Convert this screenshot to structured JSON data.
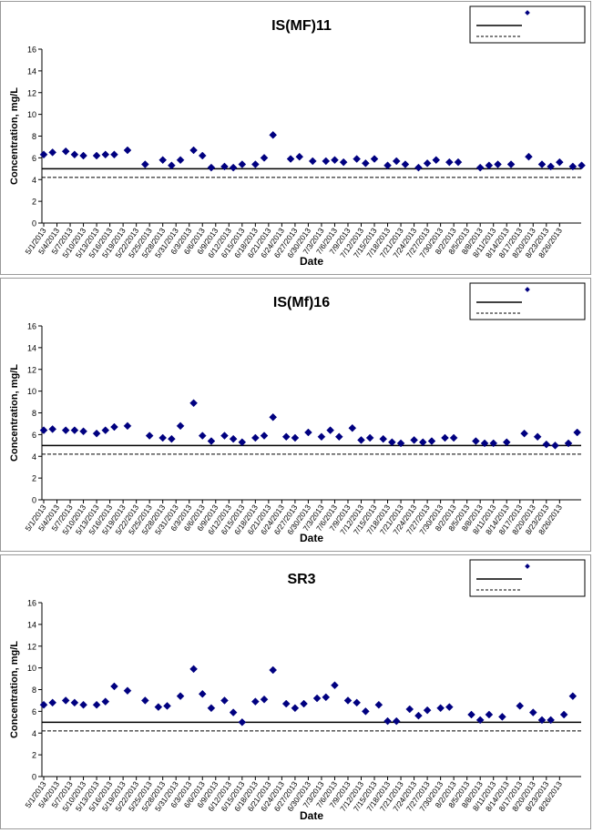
{
  "chart_data": [
    {
      "type": "scatter",
      "title": "IS(MF)11",
      "xlabel": "Date",
      "ylabel": "Concentration, mg/L",
      "ylim": [
        0,
        16
      ],
      "yticks": [
        0,
        2,
        4,
        6,
        8,
        10,
        12,
        14,
        16
      ],
      "xlim": [
        "2013-05-01",
        "2013-08-28"
      ],
      "xtick_labels": [
        "5/1/2013",
        "5/4/2013",
        "5/7/2013",
        "5/10/2013",
        "5/13/2013",
        "5/16/2013",
        "5/19/2013",
        "5/22/2013",
        "5/25/2013",
        "5/28/2013",
        "5/31/2013",
        "6/3/2013",
        "6/6/2013",
        "6/9/2013",
        "6/12/2013",
        "6/15/2013",
        "6/18/2013",
        "6/21/2013",
        "6/24/2013",
        "6/27/2013",
        "6/30/2013",
        "7/3/2013",
        "7/6/2013",
        "7/9/2013",
        "7/12/2013",
        "7/15/2013",
        "7/18/2013",
        "7/21/2013",
        "7/24/2013",
        "7/27/2013",
        "7/30/2013",
        "8/2/2013",
        "8/5/2013",
        "8/8/2013",
        "8/11/2013",
        "8/14/2013",
        "8/17/2013",
        "8/20/2013",
        "8/23/2013",
        "8/26/2013"
      ],
      "marker_color": "#000080",
      "grid": false,
      "legend": "top-right",
      "reference_lines": [
        {
          "style": "solid",
          "value": 5
        },
        {
          "style": "dashed",
          "value": 4.2
        }
      ],
      "points": [
        {
          "x": "5/1/2013",
          "y": 6.3
        },
        {
          "x": "5/3/2013",
          "y": 6.5
        },
        {
          "x": "5/6/2013",
          "y": 6.6
        },
        {
          "x": "5/8/2013",
          "y": 6.3
        },
        {
          "x": "5/10/2013",
          "y": 6.2
        },
        {
          "x": "5/13/2013",
          "y": 6.2
        },
        {
          "x": "5/15/2013",
          "y": 6.3
        },
        {
          "x": "5/17/2013",
          "y": 6.3
        },
        {
          "x": "5/20/2013",
          "y": 6.7
        },
        {
          "x": "5/24/2013",
          "y": 5.4
        },
        {
          "x": "5/28/2013",
          "y": 5.8
        },
        {
          "x": "5/30/2013",
          "y": 5.3
        },
        {
          "x": "6/1/2013",
          "y": 5.8
        },
        {
          "x": "6/4/2013",
          "y": 6.7
        },
        {
          "x": "6/6/2013",
          "y": 6.2
        },
        {
          "x": "6/8/2013",
          "y": 5.1
        },
        {
          "x": "6/11/2013",
          "y": 5.2
        },
        {
          "x": "6/13/2013",
          "y": 5.1
        },
        {
          "x": "6/15/2013",
          "y": 5.4
        },
        {
          "x": "6/18/2013",
          "y": 5.4
        },
        {
          "x": "6/20/2013",
          "y": 6.0
        },
        {
          "x": "6/22/2013",
          "y": 8.1
        },
        {
          "x": "6/26/2013",
          "y": 5.9
        },
        {
          "x": "6/28/2013",
          "y": 6.1
        },
        {
          "x": "7/1/2013",
          "y": 5.7
        },
        {
          "x": "7/4/2013",
          "y": 5.7
        },
        {
          "x": "7/6/2013",
          "y": 5.8
        },
        {
          "x": "7/8/2013",
          "y": 5.6
        },
        {
          "x": "7/11/2013",
          "y": 5.9
        },
        {
          "x": "7/13/2013",
          "y": 5.5
        },
        {
          "x": "7/15/2013",
          "y": 5.9
        },
        {
          "x": "7/18/2013",
          "y": 5.3
        },
        {
          "x": "7/20/2013",
          "y": 5.7
        },
        {
          "x": "7/22/2013",
          "y": 5.4
        },
        {
          "x": "7/25/2013",
          "y": 5.1
        },
        {
          "x": "7/27/2013",
          "y": 5.5
        },
        {
          "x": "7/29/2013",
          "y": 5.8
        },
        {
          "x": "8/1/2013",
          "y": 5.6
        },
        {
          "x": "8/3/2013",
          "y": 5.6
        },
        {
          "x": "8/8/2013",
          "y": 5.1
        },
        {
          "x": "8/10/2013",
          "y": 5.3
        },
        {
          "x": "8/12/2013",
          "y": 5.4
        },
        {
          "x": "8/15/2013",
          "y": 5.4
        },
        {
          "x": "8/19/2013",
          "y": 6.1
        },
        {
          "x": "8/22/2013",
          "y": 5.4
        },
        {
          "x": "8/24/2013",
          "y": 5.2
        },
        {
          "x": "8/26/2013",
          "y": 5.6
        },
        {
          "x": "8/29/2013",
          "y": 5.2
        },
        {
          "x": "8/31/2013",
          "y": 5.3
        }
      ]
    },
    {
      "type": "scatter",
      "title": "IS(Mf)16",
      "xlabel": "Date",
      "ylabel": "Concentration, mg/L",
      "ylim": [
        0,
        16
      ],
      "yticks": [
        0,
        2,
        4,
        6,
        8,
        10,
        12,
        14,
        16
      ],
      "xlim": [
        "2013-05-01",
        "2013-08-28"
      ],
      "xtick_labels": [
        "5/1/2013",
        "5/4/2013",
        "5/7/2013",
        "5/10/2013",
        "5/13/2013",
        "5/16/2013",
        "5/19/2013",
        "5/22/2013",
        "5/25/2013",
        "5/28/2013",
        "5/31/2013",
        "6/3/2013",
        "6/6/2013",
        "6/9/2013",
        "6/12/2013",
        "6/15/2013",
        "6/18/2013",
        "6/21/2013",
        "6/24/2013",
        "6/27/2013",
        "6/30/2013",
        "7/3/2013",
        "7/6/2013",
        "7/9/2013",
        "7/12/2013",
        "7/15/2013",
        "7/18/2013",
        "7/21/2013",
        "7/24/2013",
        "7/27/2013",
        "7/30/2013",
        "8/2/2013",
        "8/5/2013",
        "8/8/2013",
        "8/11/2013",
        "8/14/2013",
        "8/17/2013",
        "8/20/2013",
        "8/23/2013",
        "8/26/2013"
      ],
      "marker_color": "#000080",
      "grid": false,
      "legend": "top-right",
      "reference_lines": [
        {
          "style": "solid",
          "value": 5
        },
        {
          "style": "dashed",
          "value": 4.2
        }
      ],
      "points": [
        {
          "x": "5/1/2013",
          "y": 6.4
        },
        {
          "x": "5/3/2013",
          "y": 6.5
        },
        {
          "x": "5/6/2013",
          "y": 6.4
        },
        {
          "x": "5/8/2013",
          "y": 6.4
        },
        {
          "x": "5/10/2013",
          "y": 6.3
        },
        {
          "x": "5/13/2013",
          "y": 6.1
        },
        {
          "x": "5/15/2013",
          "y": 6.4
        },
        {
          "x": "5/17/2013",
          "y": 6.7
        },
        {
          "x": "5/20/2013",
          "y": 6.8
        },
        {
          "x": "5/25/2013",
          "y": 5.9
        },
        {
          "x": "5/28/2013",
          "y": 5.7
        },
        {
          "x": "5/30/2013",
          "y": 5.6
        },
        {
          "x": "6/1/2013",
          "y": 6.8
        },
        {
          "x": "6/4/2013",
          "y": 8.9
        },
        {
          "x": "6/6/2013",
          "y": 5.9
        },
        {
          "x": "6/8/2013",
          "y": 5.4
        },
        {
          "x": "6/11/2013",
          "y": 5.9
        },
        {
          "x": "6/13/2013",
          "y": 5.6
        },
        {
          "x": "6/15/2013",
          "y": 5.3
        },
        {
          "x": "6/18/2013",
          "y": 5.7
        },
        {
          "x": "6/20/2013",
          "y": 5.9
        },
        {
          "x": "6/22/2013",
          "y": 7.6
        },
        {
          "x": "6/25/2013",
          "y": 5.8
        },
        {
          "x": "6/27/2013",
          "y": 5.7
        },
        {
          "x": "6/30/2013",
          "y": 6.2
        },
        {
          "x": "7/3/2013",
          "y": 5.8
        },
        {
          "x": "7/5/2013",
          "y": 6.4
        },
        {
          "x": "7/7/2013",
          "y": 5.8
        },
        {
          "x": "7/10/2013",
          "y": 6.6
        },
        {
          "x": "7/12/2013",
          "y": 5.5
        },
        {
          "x": "7/14/2013",
          "y": 5.7
        },
        {
          "x": "7/17/2013",
          "y": 5.6
        },
        {
          "x": "7/19/2013",
          "y": 5.3
        },
        {
          "x": "7/21/2013",
          "y": 5.2
        },
        {
          "x": "7/24/2013",
          "y": 5.5
        },
        {
          "x": "7/26/2013",
          "y": 5.3
        },
        {
          "x": "7/28/2013",
          "y": 5.4
        },
        {
          "x": "7/31/2013",
          "y": 5.7
        },
        {
          "x": "8/2/2013",
          "y": 5.7
        },
        {
          "x": "8/7/2013",
          "y": 5.4
        },
        {
          "x": "8/9/2013",
          "y": 5.2
        },
        {
          "x": "8/11/2013",
          "y": 5.2
        },
        {
          "x": "8/14/2013",
          "y": 5.3
        },
        {
          "x": "8/18/2013",
          "y": 6.1
        },
        {
          "x": "8/21/2013",
          "y": 5.8
        },
        {
          "x": "8/23/2013",
          "y": 5.1
        },
        {
          "x": "8/25/2013",
          "y": 5.0
        },
        {
          "x": "8/28/2013",
          "y": 5.2
        },
        {
          "x": "8/30/2013",
          "y": 6.2
        }
      ]
    },
    {
      "type": "scatter",
      "title": "SR3",
      "xlabel": "Date",
      "ylabel": "Concentration, mg/L",
      "ylim": [
        0,
        16
      ],
      "yticks": [
        0,
        2,
        4,
        6,
        8,
        10,
        12,
        14,
        16
      ],
      "xlim": [
        "2013-05-01",
        "2013-08-28"
      ],
      "xtick_labels": [
        "5/1/2013",
        "5/4/2013",
        "5/7/2013",
        "5/10/2013",
        "5/13/2013",
        "5/16/2013",
        "5/19/2013",
        "5/22/2013",
        "5/25/2013",
        "5/28/2013",
        "5/31/2013",
        "6/3/2013",
        "6/6/2013",
        "6/9/2013",
        "6/12/2013",
        "6/15/2013",
        "6/18/2013",
        "6/21/2013",
        "6/24/2013",
        "6/27/2013",
        "6/30/2013",
        "7/3/2013",
        "7/6/2013",
        "7/9/2013",
        "7/12/2013",
        "7/15/2013",
        "7/18/2013",
        "7/21/2013",
        "7/24/2013",
        "7/27/2013",
        "7/30/2013",
        "8/2/2013",
        "8/5/2013",
        "8/8/2013",
        "8/11/2013",
        "8/14/2013",
        "8/17/2013",
        "8/20/2013",
        "8/23/2013",
        "8/26/2013"
      ],
      "marker_color": "#000080",
      "grid": false,
      "legend": "top-right",
      "reference_lines": [
        {
          "style": "solid",
          "value": 5
        },
        {
          "style": "dashed",
          "value": 4.2
        }
      ],
      "points": [
        {
          "x": "5/1/2013",
          "y": 6.6
        },
        {
          "x": "5/3/2013",
          "y": 6.8
        },
        {
          "x": "5/6/2013",
          "y": 7.0
        },
        {
          "x": "5/8/2013",
          "y": 6.8
        },
        {
          "x": "5/10/2013",
          "y": 6.6
        },
        {
          "x": "5/13/2013",
          "y": 6.6
        },
        {
          "x": "5/15/2013",
          "y": 6.9
        },
        {
          "x": "5/17/2013",
          "y": 8.3
        },
        {
          "x": "5/20/2013",
          "y": 7.9
        },
        {
          "x": "5/24/2013",
          "y": 7.0
        },
        {
          "x": "5/27/2013",
          "y": 6.4
        },
        {
          "x": "5/29/2013",
          "y": 6.5
        },
        {
          "x": "6/1/2013",
          "y": 7.4
        },
        {
          "x": "6/4/2013",
          "y": 9.9
        },
        {
          "x": "6/6/2013",
          "y": 7.6
        },
        {
          "x": "6/8/2013",
          "y": 6.3
        },
        {
          "x": "6/11/2013",
          "y": 7.0
        },
        {
          "x": "6/13/2013",
          "y": 5.9
        },
        {
          "x": "6/15/2013",
          "y": 5.0
        },
        {
          "x": "6/18/2013",
          "y": 6.9
        },
        {
          "x": "6/20/2013",
          "y": 7.1
        },
        {
          "x": "6/22/2013",
          "y": 9.8
        },
        {
          "x": "6/25/2013",
          "y": 6.7
        },
        {
          "x": "6/27/2013",
          "y": 6.3
        },
        {
          "x": "6/29/2013",
          "y": 6.7
        },
        {
          "x": "7/2/2013",
          "y": 7.2
        },
        {
          "x": "7/4/2013",
          "y": 7.3
        },
        {
          "x": "7/6/2013",
          "y": 8.4
        },
        {
          "x": "7/9/2013",
          "y": 7.0
        },
        {
          "x": "7/11/2013",
          "y": 6.8
        },
        {
          "x": "7/13/2013",
          "y": 6.0
        },
        {
          "x": "7/16/2013",
          "y": 6.6
        },
        {
          "x": "7/18/2013",
          "y": 5.1
        },
        {
          "x": "7/20/2013",
          "y": 5.1
        },
        {
          "x": "7/23/2013",
          "y": 6.2
        },
        {
          "x": "7/25/2013",
          "y": 5.6
        },
        {
          "x": "7/27/2013",
          "y": 6.1
        },
        {
          "x": "7/30/2013",
          "y": 6.3
        },
        {
          "x": "8/1/2013",
          "y": 6.4
        },
        {
          "x": "8/6/2013",
          "y": 5.7
        },
        {
          "x": "8/8/2013",
          "y": 5.2
        },
        {
          "x": "8/10/2013",
          "y": 5.7
        },
        {
          "x": "8/13/2013",
          "y": 5.5
        },
        {
          "x": "8/17/2013",
          "y": 6.5
        },
        {
          "x": "8/20/2013",
          "y": 5.9
        },
        {
          "x": "8/22/2013",
          "y": 5.2
        },
        {
          "x": "8/24/2013",
          "y": 5.2
        },
        {
          "x": "8/27/2013",
          "y": 5.7
        },
        {
          "x": "8/29/2013",
          "y": 7.4
        }
      ]
    }
  ]
}
